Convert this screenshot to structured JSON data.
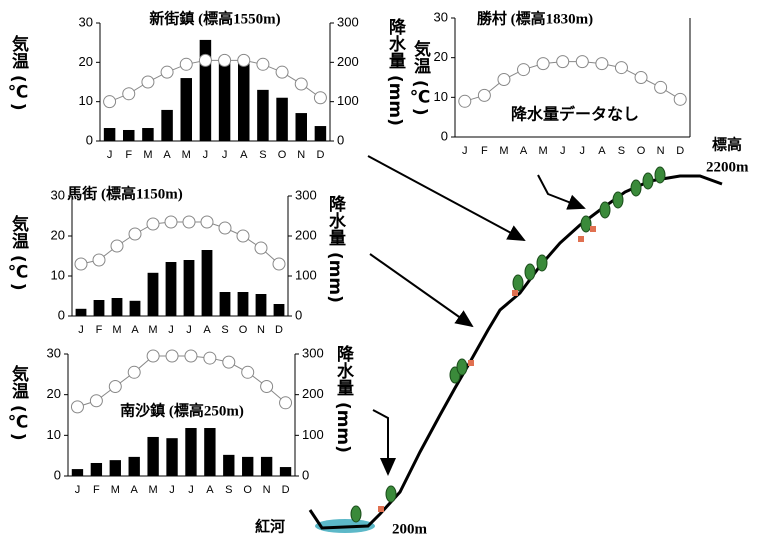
{
  "chart_data": [
    {
      "type": "climograph",
      "title": "新街鎮 (標高1550m)",
      "ylabel": "気温 (℃)",
      "y2label": "降水量 (mm)",
      "categories": [
        "J",
        "F",
        "M",
        "A",
        "M",
        "J",
        "J",
        "A",
        "S",
        "O",
        "N",
        "D"
      ],
      "ylim": [
        0,
        30
      ],
      "yticks": [
        0,
        10,
        20,
        30
      ],
      "y2lim": [
        0,
        300
      ],
      "y2ticks": [
        0,
        100,
        200,
        300
      ],
      "series": [
        {
          "type": "bar",
          "axis": "y2",
          "color": "#000000",
          "values": [
            33,
            28,
            33,
            79,
            160,
            257,
            206,
            200,
            130,
            110,
            71,
            38
          ]
        },
        {
          "type": "line",
          "color": "#888888",
          "values": [
            10,
            12,
            15,
            17.5,
            19.5,
            20.5,
            20.5,
            20.5,
            19.5,
            17.5,
            14.5,
            11
          ]
        }
      ]
    },
    {
      "type": "climograph",
      "title": "馬街 (標高1150m)",
      "ylabel": "気温 (℃)",
      "y2label": "降水量 (mm)",
      "categories": [
        "J",
        "F",
        "M",
        "A",
        "M",
        "J",
        "J",
        "A",
        "S",
        "O",
        "N",
        "D"
      ],
      "ylim": [
        0,
        30
      ],
      "yticks": [
        0,
        10,
        20,
        30
      ],
      "y2lim": [
        0,
        300
      ],
      "y2ticks": [
        0,
        100,
        200,
        300
      ],
      "series": [
        {
          "type": "bar",
          "axis": "y2",
          "color": "#000000",
          "values": [
            18,
            40,
            45,
            38,
            108,
            135,
            140,
            165,
            60,
            60,
            55,
            30
          ]
        },
        {
          "type": "line",
          "color": "#888888",
          "values": [
            13,
            14,
            17.5,
            20.5,
            23,
            23.5,
            23.5,
            23.5,
            22,
            20,
            17,
            13
          ]
        }
      ]
    },
    {
      "type": "climograph",
      "title": "南沙鎮 (標高250m)",
      "ylabel": "気温 (℃)",
      "y2label": "降水量 (mm)",
      "categories": [
        "J",
        "F",
        "M",
        "A",
        "M",
        "J",
        "J",
        "A",
        "S",
        "O",
        "N",
        "D"
      ],
      "ylim": [
        0,
        30
      ],
      "yticks": [
        0,
        10,
        20,
        30
      ],
      "y2lim": [
        0,
        300
      ],
      "y2ticks": [
        0,
        100,
        200,
        300
      ],
      "series": [
        {
          "type": "bar",
          "axis": "y2",
          "color": "#000000",
          "values": [
            17,
            32,
            39,
            47,
            96,
            93,
            118,
            118,
            52,
            47,
            47,
            22
          ]
        },
        {
          "type": "line",
          "color": "#888888",
          "values": [
            17,
            18.5,
            22,
            25.5,
            29.5,
            29.5,
            29.5,
            29,
            28,
            25.5,
            22,
            18
          ]
        }
      ]
    },
    {
      "type": "climograph",
      "title": "勝村 (標高1830m)",
      "ylabel": "気温 (℃)",
      "annotation": "降水量データなし",
      "categories": [
        "J",
        "F",
        "M",
        "A",
        "M",
        "J",
        "J",
        "A",
        "S",
        "O",
        "N",
        "D"
      ],
      "ylim": [
        0,
        30
      ],
      "yticks": [
        0,
        10,
        20,
        30
      ],
      "series": [
        {
          "type": "line",
          "color": "#888888",
          "values": [
            9,
            10.5,
            14.5,
            17,
            18.5,
            19,
            19,
            18.5,
            17.5,
            15,
            12.5,
            9.5
          ]
        }
      ]
    }
  ],
  "diagram": {
    "summit_label": "標高",
    "summit_elevation": "2200m",
    "river": "紅河",
    "base_elevation": "200m"
  }
}
